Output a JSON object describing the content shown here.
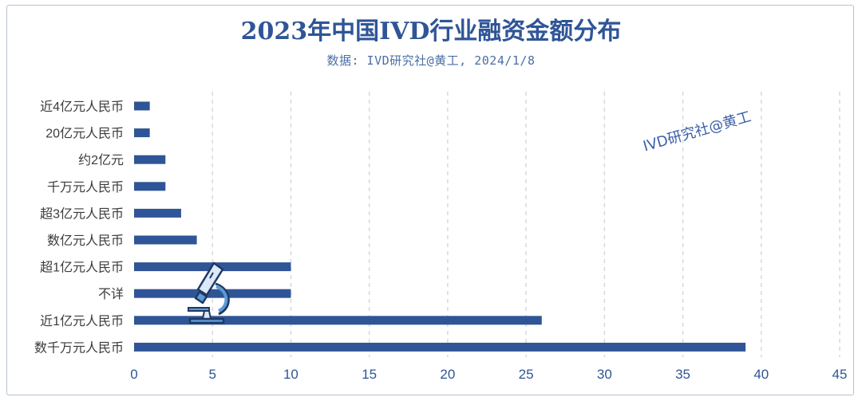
{
  "header": {
    "title": "2023年中国IVD行业融资金额分布",
    "subtitle": "数据: IVD研究社@黄工, 2024/1/8"
  },
  "watermark": "IVD研究社@黄工",
  "chart_data": {
    "type": "bar",
    "orientation": "horizontal",
    "title": "2023年中国IVD行业融资金额分布",
    "categories": [
      "近4亿元人民币",
      "20亿元人民币",
      "约2亿元",
      "千万元人民币",
      "超3亿元人民币",
      "数亿元人民币",
      "超1亿元人民币",
      "不详",
      "近1亿元人民币",
      "数千万元人民币"
    ],
    "values": [
      1,
      1,
      2,
      2,
      3,
      4,
      10,
      10,
      26,
      39
    ],
    "xlim": [
      0,
      45
    ],
    "xticks": [
      0,
      5,
      10,
      15,
      20,
      25,
      30,
      35,
      40,
      45
    ],
    "grid": "vertical-dashed",
    "legend": "none",
    "bar_color": "#2f5597"
  },
  "colors": {
    "accent": "#2f5597",
    "grid": "#d9d9d9",
    "icon": "#5b9bd5"
  },
  "decoration": {
    "icon": "microscope-icon"
  }
}
